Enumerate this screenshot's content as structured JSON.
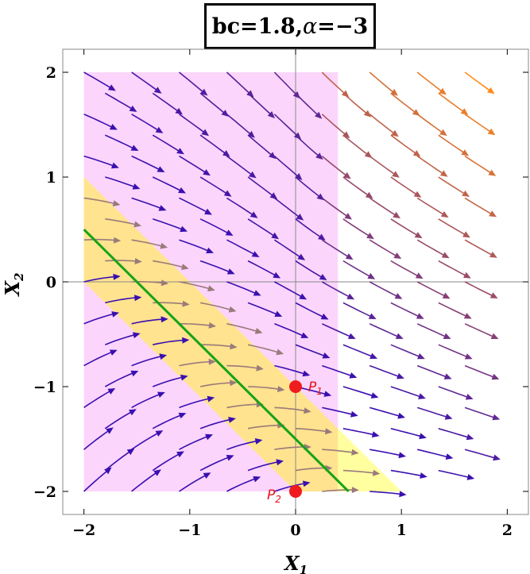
{
  "chart_data": {
    "type": "streamplot",
    "title": {
      "prefix": "bc=1.8, ",
      "alpha_symbol": "α",
      "suffix": " =−3"
    },
    "xlabel": {
      "main": "X",
      "sub": "1"
    },
    "ylabel": {
      "main": "X",
      "sub": "2"
    },
    "xlim": [
      -2.2,
      2.2
    ],
    "ylim": [
      -2.22,
      2.22
    ],
    "xticks": [
      {
        "value": -2,
        "label": "−2"
      },
      {
        "value": -1,
        "label": "−1"
      },
      {
        "value": 0,
        "label": "0"
      },
      {
        "value": 1,
        "label": "1"
      },
      {
        "value": 2,
        "label": "2"
      }
    ],
    "yticks": [
      {
        "value": -2,
        "label": "−2"
      },
      {
        "value": -1,
        "label": "−1"
      },
      {
        "value": 0,
        "label": "0"
      },
      {
        "value": 1,
        "label": "1"
      },
      {
        "value": 2,
        "label": "2"
      }
    ],
    "regions": [
      {
        "name": "pink-region",
        "color": "#fbd5fb",
        "polygon": [
          [
            -2,
            -2
          ],
          [
            0.4,
            -2
          ],
          [
            0.4,
            2
          ],
          [
            -2,
            2
          ]
        ]
      },
      {
        "name": "yellow-band",
        "color": "#ffffa0",
        "polygon": [
          [
            -2,
            1
          ],
          [
            -2,
            0
          ],
          [
            0,
            -2
          ],
          [
            1,
            -2
          ]
        ]
      },
      {
        "name": "overlap-region",
        "color": "#ffe38f",
        "polygon": [
          [
            -2,
            1
          ],
          [
            -2,
            0
          ],
          [
            0,
            -2
          ],
          [
            0.4,
            -2
          ],
          [
            0.4,
            -1.4
          ]
        ]
      }
    ],
    "green_line": {
      "color": "#15a315",
      "points": [
        [
          -2,
          0.5
        ],
        [
          0.5,
          -2
        ]
      ]
    },
    "points": [
      {
        "name": "P1",
        "label_main": "P",
        "label_sub": "1",
        "x": 0,
        "y": -1,
        "color": "#ee1c1c"
      },
      {
        "name": "P2",
        "label_main": "P",
        "label_sub": "2",
        "x": 0,
        "y": -2,
        "color": "#ee1c1c"
      }
    ],
    "colors": {
      "slow_stream": "#3a0fb0",
      "fast_stream": "#ff8c1a",
      "band_stream": "#9a7a7a",
      "zero_lines": "#8a8a8a",
      "frame": "#888888"
    },
    "grid": false
  }
}
